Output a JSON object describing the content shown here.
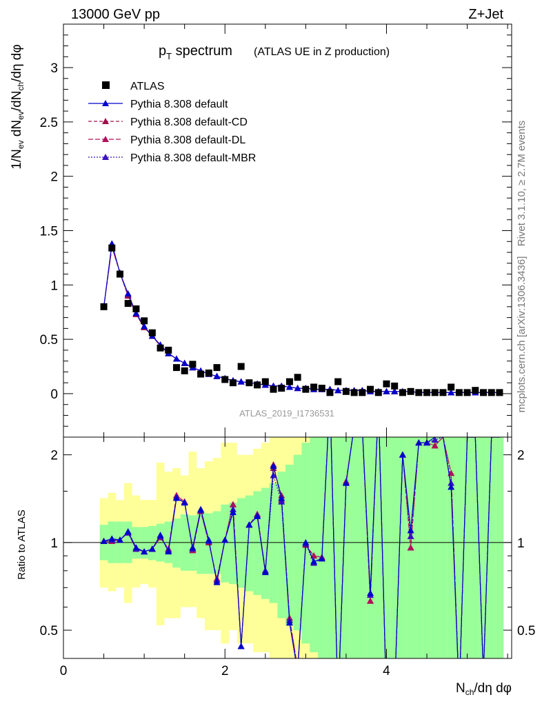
{
  "header": {
    "left": "13000 GeV pp",
    "right": "Z+Jet"
  },
  "legend": {
    "title_main": "p",
    "title_sub": "T",
    "title_rest": " spectrum",
    "title_paren": "(ATLAS UE in Z production)",
    "entries": [
      "ATLAS",
      "Pythia 8.308 default",
      "Pythia 8.308 default-CD",
      "Pythia 8.308 default-DL",
      "Pythia 8.308 default-MBR"
    ]
  },
  "side": {
    "rivet": "Rivet 3.1.10, ≥ 2.7M events",
    "mcplots": "mcplots.cern.ch [arXiv:1306.3436]"
  },
  "analysis_label": "ATLAS_2019_I1736531",
  "axes": {
    "main_ylabel": "1/N_ev dN_ev/dN_ch/dη dφ",
    "ratio_ylabel": "Ratio to ATLAS",
    "xlabel": "N_ch/dη dφ",
    "main_yticks": [
      "0",
      "0.5",
      "1",
      "1.5",
      "2",
      "2.5",
      "3"
    ],
    "ratio_yticks": [
      "0.5",
      "1",
      "2"
    ],
    "xticks": [
      "0",
      "2",
      "4"
    ]
  },
  "colors": {
    "data": "#000000",
    "default": "#0000cc",
    "cd": "#a0104a",
    "dl": "#b0105a",
    "mbr": "#3a10c0",
    "band_inner": "#99ff99",
    "band_outer": "#ffff99"
  },
  "chart_data": {
    "type": "scatter",
    "xlim": [
      0,
      5.55
    ],
    "main_ylim": [
      -0.4,
      3.4
    ],
    "ratio_ylim": [
      0.4,
      2.3
    ],
    "ratio_scale": "log",
    "x": [
      0.5,
      0.6,
      0.7,
      0.8,
      0.9,
      1.0,
      1.1,
      1.2,
      1.3,
      1.4,
      1.5,
      1.6,
      1.7,
      1.8,
      1.9,
      2.0,
      2.1,
      2.2,
      2.3,
      2.4,
      2.5,
      2.6,
      2.7,
      2.8,
      2.9,
      3.0,
      3.1,
      3.2,
      3.3,
      3.4,
      3.5,
      3.6,
      3.7,
      3.8,
      3.9,
      4.0,
      4.1,
      4.2,
      4.3,
      4.4,
      4.5,
      4.6,
      4.7,
      4.8,
      4.9,
      5.0,
      5.1,
      5.2,
      5.3,
      5.4
    ],
    "series": [
      {
        "name": "ATLAS",
        "values": [
          0.8,
          1.34,
          1.1,
          0.83,
          0.78,
          0.67,
          0.56,
          0.42,
          0.4,
          0.24,
          0.21,
          0.27,
          0.18,
          0.19,
          0.24,
          0.13,
          0.1,
          0.25,
          0.1,
          0.08,
          0.11,
          0.04,
          0.05,
          0.11,
          0.15,
          0.04,
          0.06,
          0.05,
          0.01,
          0.11,
          0.02,
          0.01,
          0.01,
          0.04,
          0.01,
          0.09,
          0.07,
          0.01,
          0.02,
          0.01,
          0.01,
          0.01,
          0.01,
          0.06,
          0.01,
          0.01,
          0.03,
          0.01,
          0.01,
          0.01
        ]
      },
      {
        "name": "Pythia 8.308 default",
        "values": [
          0.8,
          1.38,
          1.11,
          0.92,
          0.74,
          0.62,
          0.53,
          0.45,
          0.37,
          0.32,
          0.28,
          0.24,
          0.21,
          0.18,
          0.16,
          0.14,
          0.12,
          0.11,
          0.1,
          0.09,
          0.08,
          0.07,
          0.07,
          0.06,
          0.05,
          0.05,
          0.04,
          0.04,
          0.04,
          0.03,
          0.03,
          0.03,
          0.03,
          0.02,
          0.02,
          0.02,
          0.02,
          0.02,
          0.02,
          0.01,
          0.01,
          0.01,
          0.01,
          0.01,
          0.01,
          0.01,
          0.01,
          0.01,
          0.01,
          0.01
        ]
      },
      {
        "name": "Pythia 8.308 default-CD",
        "values": [
          0.8,
          1.35,
          1.11,
          0.9,
          0.73,
          0.61,
          0.53,
          0.44,
          0.37,
          0.32,
          0.28,
          0.24,
          0.21,
          0.18,
          0.16,
          0.14,
          0.12,
          0.11,
          0.1,
          0.09,
          0.08,
          0.07,
          0.07,
          0.06,
          0.05,
          0.05,
          0.04,
          0.04,
          0.04,
          0.03,
          0.03,
          0.03,
          0.03,
          0.02,
          0.02,
          0.02,
          0.02,
          0.02,
          0.02,
          0.01,
          0.01,
          0.01,
          0.01,
          0.01,
          0.01,
          0.01,
          0.01,
          0.01,
          0.01,
          0.01
        ]
      },
      {
        "name": "Pythia 8.308 default-DL",
        "values": [
          0.8,
          1.35,
          1.11,
          0.9,
          0.73,
          0.61,
          0.53,
          0.44,
          0.37,
          0.32,
          0.28,
          0.24,
          0.21,
          0.18,
          0.16,
          0.14,
          0.12,
          0.11,
          0.1,
          0.09,
          0.08,
          0.07,
          0.07,
          0.06,
          0.05,
          0.05,
          0.04,
          0.04,
          0.04,
          0.03,
          0.03,
          0.03,
          0.03,
          0.02,
          0.02,
          0.02,
          0.02,
          0.02,
          0.02,
          0.01,
          0.01,
          0.01,
          0.01,
          0.01,
          0.01,
          0.01,
          0.01,
          0.01,
          0.01,
          0.01
        ]
      },
      {
        "name": "Pythia 8.308 default-MBR",
        "values": [
          0.8,
          1.37,
          1.11,
          0.91,
          0.73,
          0.61,
          0.53,
          0.44,
          0.37,
          0.32,
          0.28,
          0.24,
          0.21,
          0.18,
          0.16,
          0.14,
          0.12,
          0.11,
          0.1,
          0.09,
          0.08,
          0.07,
          0.07,
          0.06,
          0.05,
          0.05,
          0.04,
          0.04,
          0.04,
          0.03,
          0.03,
          0.03,
          0.03,
          0.02,
          0.02,
          0.02,
          0.02,
          0.02,
          0.02,
          0.01,
          0.01,
          0.01,
          0.01,
          0.01,
          0.01,
          0.01,
          0.01,
          0.01,
          0.01,
          0.01
        ]
      }
    ],
    "ratio": {
      "default": [
        1.01,
        1.03,
        1.02,
        1.09,
        0.96,
        0.93,
        0.95,
        1.06,
        0.93,
        1.42,
        1.37,
        0.96,
        1.3,
        1.02,
        0.73,
        1.02,
        1.27,
        0.44,
        1.15,
        1.23,
        0.79,
        1.83,
        1.42,
        0.53,
        0.36,
        1.0,
        0.86,
        0.88,
        3.2,
        0.28,
        1.6,
        2.5,
        2.5,
        0.67,
        3.0,
        0.25,
        0.3,
        2.0,
        1.1,
        2.2,
        2.2,
        2.3,
        2.3,
        1.55,
        0.3,
        2.3,
        2.3,
        0.35,
        2.3,
        2.3
      ],
      "cd": [
        1.01,
        1.01,
        1.02,
        1.08,
        0.95,
        0.93,
        0.95,
        1.04,
        0.95,
        1.45,
        1.38,
        0.94,
        1.28,
        1.0,
        0.75,
        1.02,
        1.35,
        0.44,
        1.15,
        1.25,
        0.8,
        1.8,
        1.45,
        0.55,
        0.37,
        0.98,
        0.9,
        0.89,
        3.2,
        0.28,
        1.62,
        2.5,
        2.5,
        0.63,
        3.0,
        0.25,
        0.3,
        2.0,
        0.96,
        2.2,
        2.2,
        2.15,
        2.3,
        1.73,
        0.3,
        2.3,
        2.3,
        0.35,
        2.3,
        2.3
      ],
      "dl": [
        1.01,
        1.01,
        1.02,
        1.08,
        0.95,
        0.93,
        0.95,
        1.04,
        0.95,
        1.45,
        1.38,
        0.94,
        1.28,
        1.0,
        0.75,
        1.02,
        1.35,
        0.44,
        1.15,
        1.25,
        0.8,
        1.85,
        1.4,
        0.55,
        0.37,
        0.98,
        0.9,
        0.89,
        3.2,
        0.28,
        1.62,
        2.5,
        2.5,
        0.63,
        3.0,
        0.25,
        0.3,
        2.0,
        0.96,
        2.2,
        2.2,
        2.15,
        2.3,
        1.73,
        0.3,
        2.3,
        2.3,
        0.35,
        2.3,
        2.3
      ],
      "mbr": [
        1.01,
        1.02,
        1.02,
        1.08,
        0.95,
        0.93,
        0.95,
        1.05,
        0.94,
        1.43,
        1.37,
        0.95,
        1.29,
        1.01,
        0.74,
        1.02,
        1.3,
        0.44,
        1.15,
        1.24,
        0.8,
        1.7,
        1.38,
        0.54,
        0.36,
        0.99,
        0.85,
        0.88,
        3.2,
        0.28,
        1.6,
        2.5,
        2.5,
        0.66,
        3.0,
        0.25,
        0.3,
        2.0,
        1.05,
        2.2,
        2.2,
        2.25,
        2.3,
        1.6,
        0.3,
        2.3,
        2.3,
        0.35,
        2.3,
        2.3
      ],
      "band_inner": [
        [
          0.87,
          1.15
        ],
        [
          0.85,
          1.18
        ],
        [
          0.85,
          1.18
        ],
        [
          0.85,
          1.18
        ],
        [
          0.88,
          1.13
        ],
        [
          0.88,
          1.13
        ],
        [
          0.87,
          1.14
        ],
        [
          0.86,
          1.16
        ],
        [
          0.85,
          1.18
        ],
        [
          0.82,
          1.21
        ],
        [
          0.8,
          1.25
        ],
        [
          0.8,
          1.24
        ],
        [
          0.78,
          1.27
        ],
        [
          0.78,
          1.26
        ],
        [
          0.78,
          1.28
        ],
        [
          0.73,
          1.35
        ],
        [
          0.72,
          1.37
        ],
        [
          0.7,
          1.42
        ],
        [
          0.68,
          1.45
        ],
        [
          0.66,
          1.5
        ],
        [
          0.64,
          1.54
        ],
        [
          0.62,
          1.6
        ],
        [
          0.55,
          1.75
        ],
        [
          0.52,
          1.85
        ],
        [
          0.5,
          2.0
        ],
        [
          0.45,
          2.2
        ],
        [
          0.42,
          2.3
        ],
        [
          0.4,
          2.3
        ],
        [
          0.4,
          2.3
        ],
        [
          0.4,
          2.3
        ],
        [
          0.4,
          2.3
        ],
        [
          0.4,
          2.3
        ],
        [
          0.4,
          2.3
        ],
        [
          0.4,
          2.3
        ],
        [
          0.4,
          2.3
        ],
        [
          0.4,
          2.3
        ],
        [
          0.4,
          2.3
        ],
        [
          0.4,
          2.3
        ],
        [
          0.4,
          2.3
        ],
        [
          0.4,
          2.3
        ],
        [
          0.4,
          2.3
        ],
        [
          0.4,
          2.3
        ],
        [
          0.4,
          2.3
        ],
        [
          0.4,
          2.3
        ],
        [
          0.4,
          2.3
        ],
        [
          0.4,
          2.3
        ],
        [
          0.4,
          2.3
        ],
        [
          0.4,
          2.3
        ],
        [
          0.4,
          2.3
        ],
        [
          0.4,
          2.3
        ]
      ],
      "band_outer": [
        [
          0.7,
          1.42
        ],
        [
          0.68,
          1.48
        ],
        [
          0.7,
          1.4
        ],
        [
          0.62,
          1.6
        ],
        [
          0.7,
          1.45
        ],
        [
          0.72,
          1.4
        ],
        [
          0.7,
          1.4
        ],
        [
          0.52,
          1.88
        ],
        [
          0.55,
          1.75
        ],
        [
          0.55,
          1.8
        ],
        [
          0.6,
          1.7
        ],
        [
          0.6,
          2.05
        ],
        [
          0.55,
          1.8
        ],
        [
          0.5,
          1.9
        ],
        [
          0.5,
          1.95
        ],
        [
          0.45,
          2.2
        ],
        [
          0.5,
          2.2
        ],
        [
          0.45,
          2.0
        ],
        [
          0.45,
          2.0
        ],
        [
          0.42,
          2.1
        ],
        [
          0.42,
          2.2
        ],
        [
          0.4,
          2.3
        ],
        [
          0.4,
          2.3
        ],
        [
          0.4,
          2.3
        ],
        [
          0.4,
          2.3
        ],
        [
          0.4,
          2.3
        ],
        [
          0.4,
          2.3
        ],
        [
          0.4,
          2.3
        ],
        [
          0.4,
          2.3
        ],
        [
          0.4,
          2.3
        ],
        [
          0.4,
          2.3
        ],
        [
          0.4,
          2.3
        ],
        [
          0.4,
          2.3
        ],
        [
          0.4,
          2.3
        ],
        [
          0.4,
          2.3
        ],
        [
          0.4,
          2.3
        ],
        [
          0.4,
          2.3
        ],
        [
          0.4,
          2.3
        ],
        [
          0.4,
          2.3
        ],
        [
          0.4,
          2.3
        ],
        [
          0.4,
          2.3
        ],
        [
          0.4,
          2.3
        ],
        [
          0.4,
          2.3
        ],
        [
          0.4,
          2.3
        ],
        [
          0.4,
          2.3
        ],
        [
          0.4,
          2.3
        ],
        [
          0.4,
          2.3
        ],
        [
          0.4,
          2.3
        ],
        [
          0.4,
          2.3
        ],
        [
          0.4,
          2.3
        ]
      ]
    }
  }
}
